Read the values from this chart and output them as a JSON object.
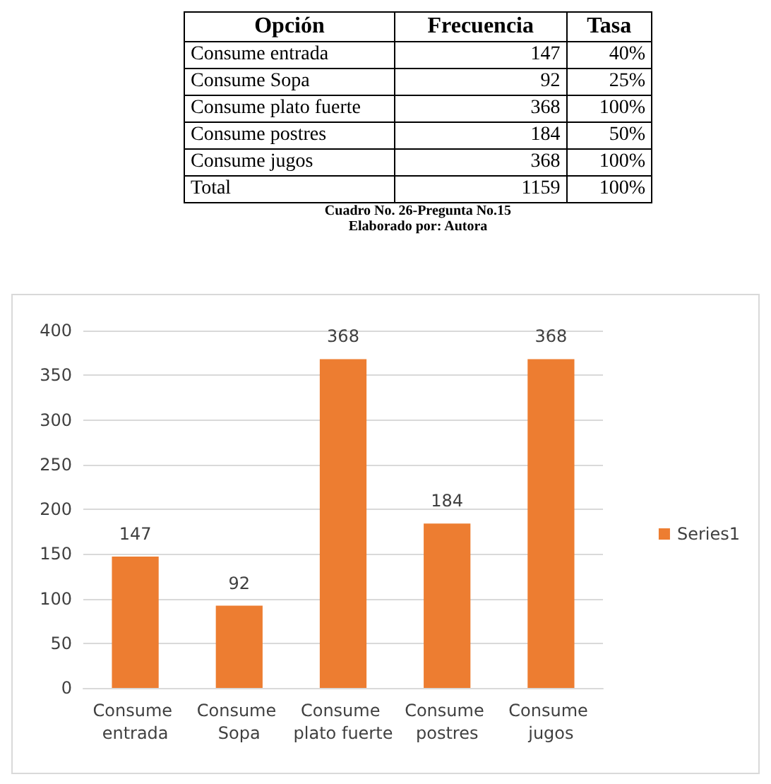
{
  "chart_data": [
    {
      "type": "other",
      "xlabel": "Opción",
      "categories": [
        "Consume entrada",
        "Consume Sopa",
        "Consume plato fuerte",
        "Consume postres",
        "Consume jugos",
        "Total"
      ],
      "series": [
        {
          "name": "Frecuencia",
          "values": [
            147,
            92,
            368,
            184,
            368,
            1159
          ]
        },
        {
          "name": "Tasa",
          "values": [
            40,
            25,
            100,
            50,
            100,
            100
          ],
          "value_labels": [
            "40%",
            "25%",
            "100%",
            "50%",
            "100%",
            "100%"
          ]
        }
      ],
      "data_labels": true,
      "annotations": [
        "Cuadro No. 26-Pregunta No.15",
        "Elaborado por: Autora"
      ]
    },
    {
      "type": "bar",
      "categories": [
        "Consume entrada",
        "Consume Sopa",
        "Consume plato fuerte",
        "Consume postres",
        "Consume jugos"
      ],
      "series": [
        {
          "name": "Series1",
          "color": "#ed7d31",
          "values": [
            147,
            92,
            368,
            184,
            368
          ]
        }
      ],
      "ylim": [
        0,
        400
      ],
      "yticks": [
        0,
        50,
        100,
        150,
        200,
        250,
        300,
        350,
        400
      ],
      "grid": "y",
      "legend": "right",
      "data_labels": true
    }
  ]
}
